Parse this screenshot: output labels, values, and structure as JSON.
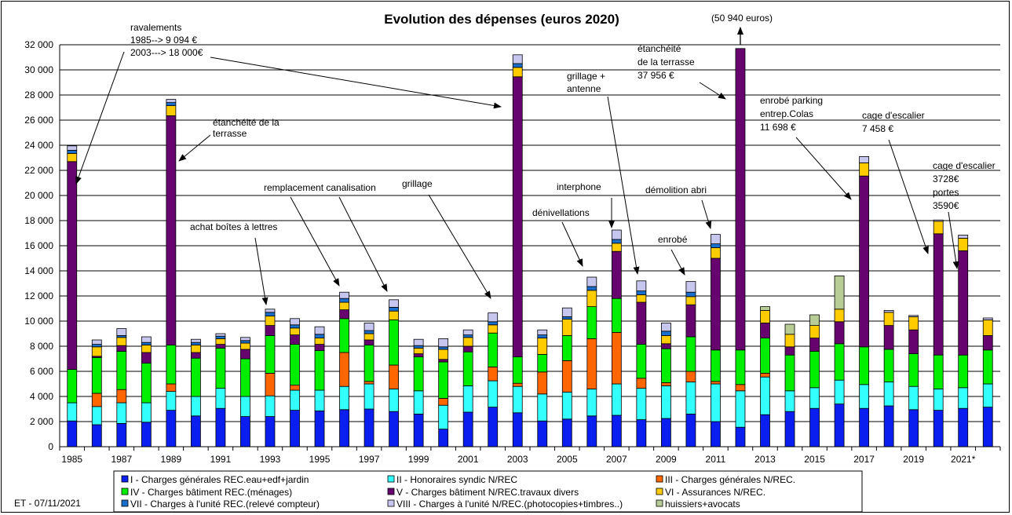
{
  "chart_data": {
    "type": "bar",
    "stacked": true,
    "title": "Evolution des dépenses (euros 2020)",
    "footer_note": "ET - 07/11/2021",
    "ylim": [
      0,
      32000
    ],
    "yticks": [
      "0",
      "2 000",
      "4 000",
      "6 000",
      "8 000",
      "10 000",
      "12 000",
      "14 000",
      "16 000",
      "18 000",
      "20 000",
      "22 000",
      "24 000",
      "26 000",
      "28 000",
      "30 000",
      "32 000"
    ],
    "grid": true,
    "legend_position": "bottom",
    "categories": [
      "1985",
      "1986",
      "1987",
      "1988",
      "1989",
      "1990",
      "1991",
      "1992",
      "1993",
      "1994",
      "1995",
      "1996",
      "1997",
      "1998",
      "1999",
      "2000",
      "2001",
      "2002",
      "2003",
      "2004",
      "2005",
      "2006",
      "2007",
      "2008",
      "2009",
      "2010",
      "2011",
      "2012",
      "2013",
      "2014",
      "2015",
      "2016",
      "2017",
      "2018",
      "2019",
      "2020",
      "2021*",
      "2022"
    ],
    "x_tick_labels": [
      "1985",
      "",
      "1987",
      "",
      "1989",
      "",
      "1991",
      "",
      "1993",
      "",
      "1995",
      "",
      "1997",
      "",
      "1999",
      "",
      "2001",
      "",
      "2003",
      "",
      "2005",
      "",
      "2007",
      "",
      "2009",
      "",
      "2011",
      "",
      "2013",
      "",
      "2015",
      "",
      "2017",
      "",
      "2019",
      "",
      "2021*",
      ""
    ],
    "series": [
      {
        "name": "I - Charges générales REC.eau+edf+jardin",
        "color": "#0a1ef0",
        "values": [
          2050,
          1750,
          1850,
          1950,
          2900,
          2450,
          3050,
          2400,
          2400,
          2900,
          2850,
          2950,
          3000,
          2800,
          2600,
          1400,
          2750,
          3150,
          2700,
          2050,
          2200,
          2450,
          2500,
          2150,
          2250,
          2600,
          2000,
          1550,
          2550,
          2800,
          3050,
          3400,
          3050,
          3250,
          2950,
          2900,
          3050,
          3150
        ]
      },
      {
        "name": "II - Honoraires  syndic N/REC",
        "color": "#33ffff",
        "values": [
          1450,
          1450,
          1650,
          1550,
          1500,
          1550,
          1600,
          1600,
          1650,
          1600,
          1650,
          1850,
          2000,
          1800,
          1850,
          1900,
          2100,
          2100,
          2100,
          2150,
          2150,
          2150,
          2500,
          2500,
          2600,
          2550,
          3000,
          2900,
          3000,
          1650,
          1650,
          1900,
          1900,
          1900,
          1850,
          1700,
          1650,
          1850
        ]
      },
      {
        "name": "III - Charges générales N/REC.",
        "color": "#ff6600",
        "values": [
          0,
          1050,
          1050,
          0,
          600,
          0,
          0,
          0,
          1800,
          400,
          0,
          2700,
          200,
          1900,
          0,
          550,
          0,
          1100,
          250,
          1750,
          2500,
          4000,
          4100,
          800,
          250,
          850,
          200,
          500,
          300,
          0,
          0,
          0,
          0,
          0,
          0,
          0,
          0,
          0
        ]
      },
      {
        "name": "IV - Charges bâtiment REC.(ménages)",
        "color": "#00ee00",
        "values": [
          2650,
          2850,
          3050,
          3150,
          3100,
          3050,
          3200,
          3000,
          3000,
          3250,
          3150,
          2700,
          2900,
          3600,
          2700,
          2900,
          2700,
          2700,
          2100,
          1400,
          2000,
          2550,
          2700,
          2700,
          2700,
          2750,
          2500,
          2750,
          2800,
          2850,
          2900,
          2900,
          3000,
          2600,
          2600,
          2700,
          2600,
          2700
        ]
      },
      {
        "name": "V - Charges bâtiment N/REC.travaux divers",
        "color": "#66036f",
        "values": [
          16550,
          100,
          450,
          850,
          18250,
          450,
          300,
          750,
          800,
          750,
          500,
          700,
          400,
          0,
          250,
          200,
          450,
          0,
          22300,
          0,
          0,
          0,
          3750,
          3350,
          400,
          2550,
          7300,
          24000,
          1200,
          650,
          1050,
          1750,
          13600,
          1900,
          1900,
          9650,
          8300,
          1150
        ]
      },
      {
        "name": "VI - Assurances N/REC.",
        "color": "#ffcc00",
        "values": [
          650,
          750,
          650,
          600,
          800,
          600,
          450,
          500,
          750,
          550,
          500,
          600,
          500,
          700,
          450,
          800,
          700,
          650,
          750,
          1300,
          1300,
          1300,
          650,
          600,
          650,
          650,
          850,
          0,
          1000,
          1000,
          1000,
          1000,
          1050,
          1050,
          1050,
          1000,
          1000,
          1250
        ]
      },
      {
        "name": "VII - Charges à l'unité REC.(relevé  compteur)",
        "color": "#1a6fcc",
        "values": [
          250,
          200,
          150,
          200,
          250,
          200,
          200,
          200,
          300,
          250,
          300,
          300,
          250,
          300,
          200,
          200,
          200,
          250,
          300,
          250,
          200,
          300,
          300,
          300,
          350,
          350,
          300,
          0,
          0,
          0,
          0,
          0,
          0,
          0,
          0,
          0,
          0,
          0
        ]
      },
      {
        "name": "VIII - Charges à l'unité N/REC.(photocopies+timbres..)",
        "color": "#c6c6ee",
        "values": [
          350,
          350,
          550,
          450,
          250,
          250,
          200,
          250,
          250,
          500,
          600,
          500,
          600,
          600,
          500,
          650,
          400,
          700,
          700,
          400,
          700,
          750,
          750,
          800,
          650,
          850,
          750,
          0,
          0,
          0,
          0,
          0,
          500,
          150,
          100,
          100,
          250,
          150
        ]
      },
      {
        "name": "huissiers+avocats",
        "color": "#b8cc96",
        "values": [
          0,
          0,
          0,
          0,
          0,
          0,
          0,
          0,
          0,
          0,
          0,
          0,
          0,
          0,
          0,
          0,
          0,
          0,
          0,
          0,
          0,
          0,
          0,
          0,
          0,
          0,
          0,
          0,
          300,
          800,
          850,
          2650,
          0,
          0,
          0,
          0,
          0,
          0
        ]
      }
    ],
    "overflow_note": "(50 940 euros)",
    "annotations": [
      {
        "lines": [
          "ravalements",
          "1985--> 9 094 €",
          "2003---> 18 000€"
        ]
      },
      {
        "lines": [
          "étanchéité de la",
          "terrasse"
        ]
      },
      {
        "lines": [
          "achat boîtes à lettres"
        ]
      },
      {
        "lines": [
          "remplacement canalisation"
        ]
      },
      {
        "lines": [
          "grillage"
        ]
      },
      {
        "lines": [
          "dénivellations"
        ]
      },
      {
        "lines": [
          "interphone"
        ]
      },
      {
        "lines": [
          "grillage +",
          "antenne"
        ]
      },
      {
        "lines": [
          "étanchéité",
          "de la terrasse",
          "37 956 €"
        ]
      },
      {
        "lines": [
          "démolition abri"
        ]
      },
      {
        "lines": [
          "enrobé"
        ]
      },
      {
        "lines": [
          "enrobé parking",
          "entrep.Colas",
          "11 698 €"
        ]
      },
      {
        "lines": [
          "cage d'escalier",
          "7 458 €"
        ]
      },
      {
        "lines": [
          "cage d'escalier",
          "3728€",
          "portes",
          "3590€"
        ]
      }
    ]
  }
}
